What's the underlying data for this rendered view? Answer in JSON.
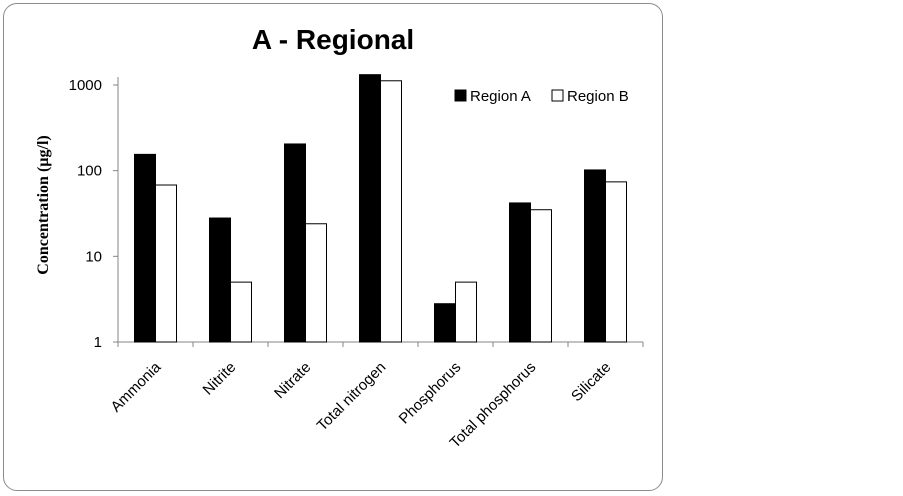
{
  "chart_data": {
    "type": "bar",
    "title": "A - Regional",
    "xlabel": "",
    "ylabel": "Concentration (µg/l)",
    "yscale": "log",
    "ylim": [
      1,
      1000
    ],
    "yticks": [
      "1",
      "10",
      "100",
      "1000"
    ],
    "grid": false,
    "legend_position": "top-right",
    "categories": [
      "Ammonia",
      "Nitrite",
      "Nitrate",
      "Total nitrogen",
      "Phosphorus",
      "Total phosphorus",
      "Silicate"
    ],
    "series": [
      {
        "name": "Region A",
        "color": "#000000",
        "values": [
          155,
          28,
          205,
          1320,
          2.8,
          42,
          102
        ]
      },
      {
        "name": "Region B",
        "color": "#ffffff",
        "values": [
          68,
          5,
          24,
          1120,
          5,
          35,
          74
        ]
      }
    ]
  }
}
